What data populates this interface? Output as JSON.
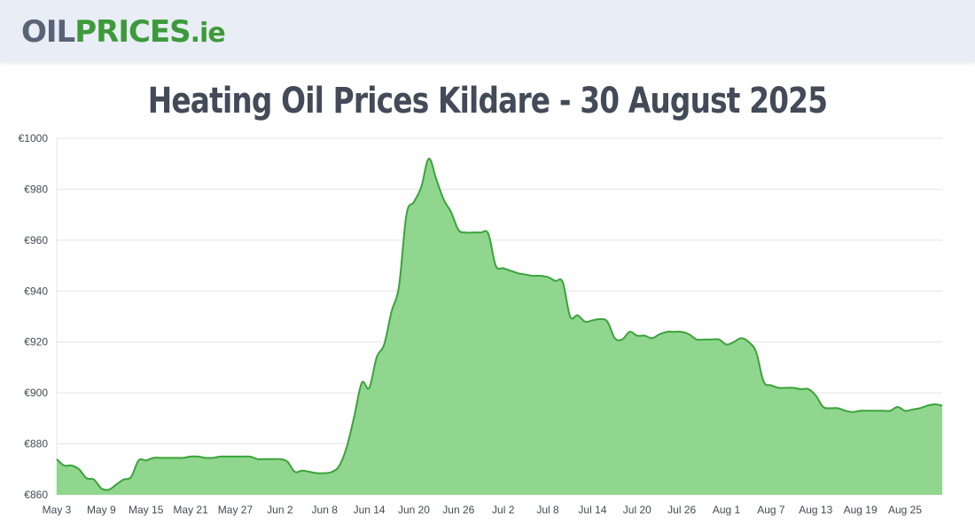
{
  "header": {
    "logo_part1": "OIL",
    "logo_part2": "PRICES",
    "logo_part3": ".ie"
  },
  "page": {
    "title": "Heating Oil Prices Kildare - 30 August 2025"
  },
  "colors": {
    "line": "#3aa33a",
    "fill": "#90d68f",
    "grid": "#e4e4e4",
    "header_bg": "#e9edf5",
    "title": "#434a58"
  },
  "chart_data": {
    "type": "area",
    "title": "Heating Oil Prices Kildare - 30 August 2025",
    "xlabel": "",
    "ylabel": "",
    "ylim": [
      860,
      1000
    ],
    "y_ticks": [
      "€860",
      "€880",
      "€900",
      "€920",
      "€940",
      "€960",
      "€980",
      "€1000"
    ],
    "x_ticks": [
      "May 3",
      "May 9",
      "May 15",
      "May 21",
      "May 27",
      "Jun 2",
      "Jun 8",
      "Jun 14",
      "Jun 20",
      "Jun 26",
      "Jul 2",
      "Jul 8",
      "Jul 14",
      "Jul 20",
      "Jul 26",
      "Aug 1",
      "Aug 7",
      "Aug 13",
      "Aug 19",
      "Aug 25"
    ],
    "x_range": [
      "May 3",
      "Aug 30"
    ],
    "grid": true,
    "legend": "none",
    "series": [
      {
        "points": [
          [
            "May 3",
            874
          ],
          [
            "May 4",
            871.5
          ],
          [
            "May 5",
            871.5
          ],
          [
            "May 6",
            870
          ],
          [
            "May 7",
            866.5
          ],
          [
            "May 8",
            866
          ],
          [
            "May 9",
            862.5
          ],
          [
            "May 10",
            862
          ],
          [
            "May 11",
            864
          ],
          [
            "May 12",
            866
          ],
          [
            "May 13",
            867
          ],
          [
            "May 14",
            873.5
          ],
          [
            "May 15",
            873.5
          ],
          [
            "May 16",
            874.5
          ],
          [
            "May 17",
            874.5
          ],
          [
            "May 18",
            874.5
          ],
          [
            "May 19",
            874.5
          ],
          [
            "May 20",
            874.5
          ],
          [
            "May 21",
            875
          ],
          [
            "May 22",
            875
          ],
          [
            "May 23",
            874.5
          ],
          [
            "May 24",
            874.5
          ],
          [
            "May 25",
            875
          ],
          [
            "May 26",
            875
          ],
          [
            "May 27",
            875
          ],
          [
            "May 28",
            875
          ],
          [
            "May 29",
            875
          ],
          [
            "May 30",
            874
          ],
          [
            "May 31",
            874
          ],
          [
            "Jun 1",
            874
          ],
          [
            "Jun 2",
            874
          ],
          [
            "Jun 3",
            873
          ],
          [
            "Jun 4",
            869
          ],
          [
            "Jun 5",
            869.5
          ],
          [
            "Jun 6",
            869
          ],
          [
            "Jun 7",
            868.5
          ],
          [
            "Jun 8",
            868.5
          ],
          [
            "Jun 9",
            869
          ],
          [
            "Jun 10",
            871.5
          ],
          [
            "Jun 11",
            879
          ],
          [
            "Jun 12",
            891
          ],
          [
            "Jun 13",
            904
          ],
          [
            "Jun 14",
            902
          ],
          [
            "Jun 15",
            914
          ],
          [
            "Jun 16",
            919
          ],
          [
            "Jun 17",
            932
          ],
          [
            "Jun 18",
            942
          ],
          [
            "Jun 19",
            970
          ],
          [
            "Jun 20",
            975
          ],
          [
            "Jun 21",
            981
          ],
          [
            "Jun 22",
            992
          ],
          [
            "Jun 23",
            984
          ],
          [
            "Jun 24",
            976
          ],
          [
            "Jun 25",
            971
          ],
          [
            "Jun 26",
            964
          ],
          [
            "Jun 27",
            963
          ],
          [
            "Jun 28",
            963
          ],
          [
            "Jun 29",
            963
          ],
          [
            "Jun 30",
            962.5
          ],
          [
            "Jul 1",
            950
          ],
          [
            "Jul 2",
            949
          ],
          [
            "Jul 3",
            948
          ],
          [
            "Jul 4",
            947
          ],
          [
            "Jul 5",
            946.5
          ],
          [
            "Jul 6",
            946
          ],
          [
            "Jul 7",
            946
          ],
          [
            "Jul 8",
            945.5
          ],
          [
            "Jul 9",
            944
          ],
          [
            "Jul 10",
            943.5
          ],
          [
            "Jul 11",
            930
          ],
          [
            "Jul 12",
            930.5
          ],
          [
            "Jul 13",
            928
          ],
          [
            "Jul 14",
            928.5
          ],
          [
            "Jul 15",
            929
          ],
          [
            "Jul 16",
            928
          ],
          [
            "Jul 17",
            921.5
          ],
          [
            "Jul 18",
            921
          ],
          [
            "Jul 19",
            924
          ],
          [
            "Jul 20",
            922.5
          ],
          [
            "Jul 21",
            922.5
          ],
          [
            "Jul 22",
            921.5
          ],
          [
            "Jul 23",
            923
          ],
          [
            "Jul 24",
            924
          ],
          [
            "Jul 25",
            924
          ],
          [
            "Jul 26",
            924
          ],
          [
            "Jul 27",
            923
          ],
          [
            "Jul 28",
            921
          ],
          [
            "Jul 29",
            921
          ],
          [
            "Jul 30",
            921
          ],
          [
            "Jul 31",
            921
          ],
          [
            "Aug 1",
            919
          ],
          [
            "Aug 2",
            920
          ],
          [
            "Aug 3",
            921.5
          ],
          [
            "Aug 4",
            920
          ],
          [
            "Aug 5",
            916
          ],
          [
            "Aug 6",
            904.5
          ],
          [
            "Aug 7",
            903
          ],
          [
            "Aug 8",
            902
          ],
          [
            "Aug 9",
            902
          ],
          [
            "Aug 10",
            902
          ],
          [
            "Aug 11",
            901.5
          ],
          [
            "Aug 12",
            901.5
          ],
          [
            "Aug 13",
            899
          ],
          [
            "Aug 14",
            894.5
          ],
          [
            "Aug 15",
            894
          ],
          [
            "Aug 16",
            894
          ],
          [
            "Aug 17",
            893
          ],
          [
            "Aug 18",
            892.5
          ],
          [
            "Aug 19",
            893
          ],
          [
            "Aug 20",
            893
          ],
          [
            "Aug 21",
            893
          ],
          [
            "Aug 22",
            893
          ],
          [
            "Aug 23",
            893
          ],
          [
            "Aug 24",
            894.5
          ],
          [
            "Aug 25",
            893
          ],
          [
            "Aug 26",
            893.5
          ],
          [
            "Aug 27",
            894
          ],
          [
            "Aug 28",
            895
          ],
          [
            "Aug 29",
            895.5
          ],
          [
            "Aug 30",
            895
          ]
        ]
      }
    ]
  }
}
